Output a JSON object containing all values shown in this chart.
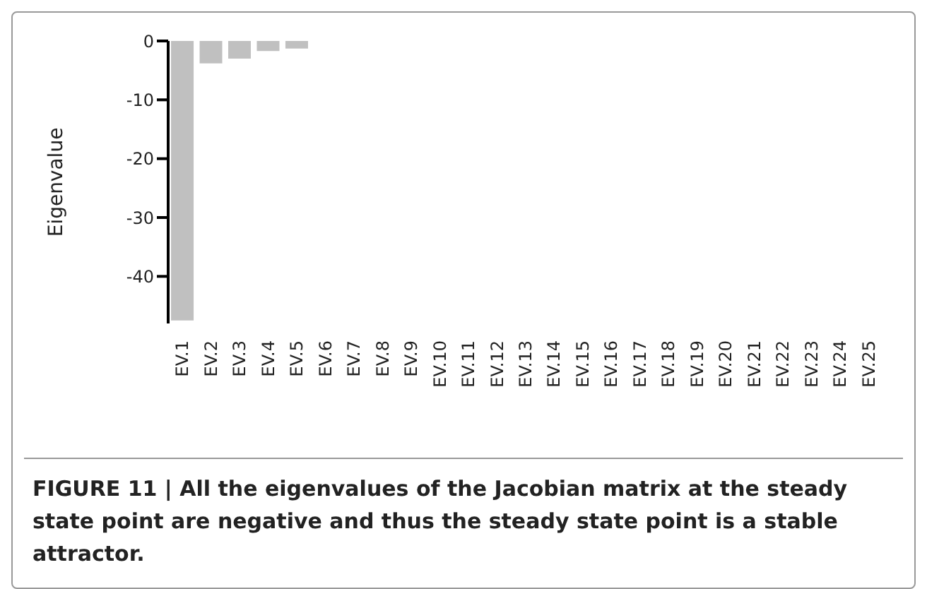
{
  "chart_data": {
    "type": "bar",
    "ylabel": "Eigenvalue",
    "categories": [
      "EV.1",
      "EV.2",
      "EV.3",
      "EV.4",
      "EV.5",
      "EV.6",
      "EV.7",
      "EV.8",
      "EV.9",
      "EV.10",
      "EV.11",
      "EV.12",
      "EV.13",
      "EV.14",
      "EV.15",
      "EV.16",
      "EV.17",
      "EV.18",
      "EV.19",
      "EV.20",
      "EV.21",
      "EV.22",
      "EV.23",
      "EV.24",
      "EV.25"
    ],
    "values": [
      -47.5,
      -3.8,
      -3,
      -1.7,
      -1.3,
      0,
      0,
      0,
      0,
      0,
      0,
      0,
      0,
      0,
      0,
      0,
      0,
      0,
      0,
      0,
      0,
      0,
      0,
      0,
      0
    ],
    "color": "#c0c0c0",
    "ylim": [
      -48,
      0
    ],
    "yticks": [
      0,
      -10,
      -20,
      -30,
      -40
    ],
    "grid": false,
    "legend": false,
    "annotations": [
      "FIGURE 11 | All the eigenvalues of the Jacobian matrix at the steady state point are negative and thus the steady state point is a stable attractor."
    ]
  }
}
